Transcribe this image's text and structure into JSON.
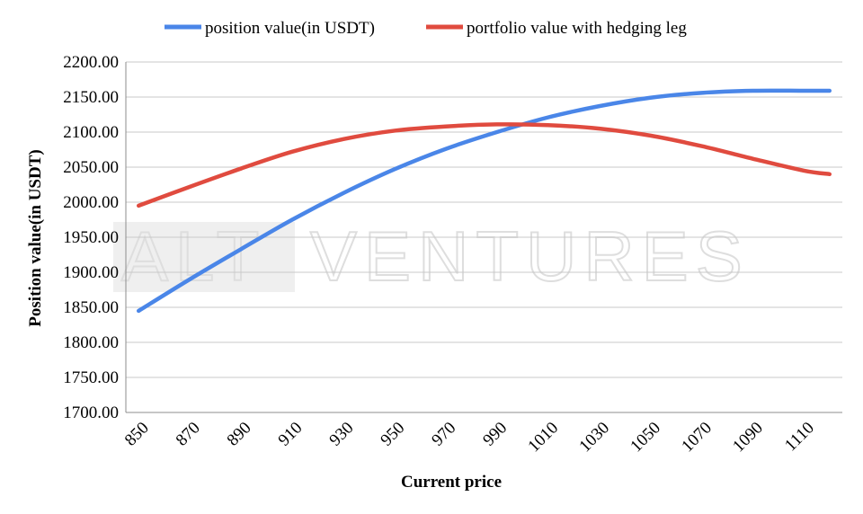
{
  "chart_data": {
    "type": "line",
    "title": "",
    "xlabel": "Current price",
    "ylabel": "Position value(in USDT)",
    "x": [
      850,
      870,
      890,
      910,
      930,
      950,
      970,
      990,
      1010,
      1030,
      1050,
      1070,
      1090,
      1110,
      1120
    ],
    "x_tick_labels": [
      "850",
      "870",
      "890",
      "910",
      "930",
      "950",
      "970",
      "990",
      "1010",
      "1030",
      "1050",
      "1070",
      "1090",
      "1110"
    ],
    "xlim": [
      845,
      1125
    ],
    "ylim": [
      1700,
      2200
    ],
    "y_tick_labels": [
      "1700.00",
      "1750.00",
      "1800.00",
      "1850.00",
      "1900.00",
      "1950.00",
      "2000.00",
      "2050.00",
      "2100.00",
      "2150.00",
      "2200.00"
    ],
    "grid": true,
    "legend_position": "top",
    "series": [
      {
        "name": "position value(in USDT)",
        "color": "#4a86e8",
        "values": [
          1845,
          1890,
          1933,
          1975,
          2013,
          2047,
          2076,
          2100,
          2121,
          2137,
          2149,
          2156,
          2159,
          2159,
          2159
        ]
      },
      {
        "name": "portfolio value with hedging leg",
        "color": "#e04b3f",
        "values": [
          1995,
          2022,
          2048,
          2072,
          2090,
          2102,
          2108,
          2111,
          2110,
          2105,
          2095,
          2080,
          2062,
          2045,
          2040
        ]
      }
    ]
  },
  "watermark": {
    "block_text": "ALT",
    "text": "VENTURES"
  }
}
